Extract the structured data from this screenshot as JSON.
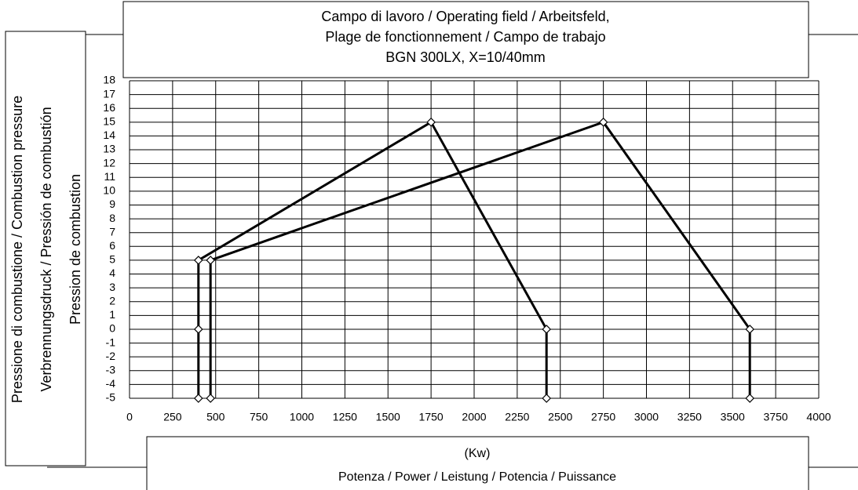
{
  "chart_data": {
    "type": "line",
    "title": [
      "Campo di lavoro / Operating field / Arbeitsfeld,",
      "Plage de fonctionnement / Campo de trabajo",
      "BGN 300LX, X=10/40mm"
    ],
    "ylabel": [
      "Pressione di combustione / Combustion pressure",
      "Verbrennungsdruck / Pressión de combustión",
      "Pression de combustion"
    ],
    "xlabel": [
      "(Kw)",
      "Potenza / Power / Leistung / Potencia / Puissance"
    ],
    "series": [
      {
        "color": "#000000",
        "x": [
          400,
          400,
          400,
          1750,
          2420,
          2420
        ],
        "values": [
          -5,
          0,
          5,
          15,
          0,
          -5
        ]
      },
      {
        "color": "#000000",
        "x": [
          470,
          470,
          2750,
          3600,
          3600
        ],
        "values": [
          -5,
          5,
          15,
          0,
          -5
        ]
      }
    ],
    "xlim": [
      0,
      4000
    ],
    "xticks": [
      0,
      250,
      500,
      750,
      1000,
      1250,
      1500,
      1750,
      2000,
      2250,
      2500,
      2750,
      3000,
      3250,
      3500,
      3750,
      4000
    ],
    "ylim": [
      -5,
      18
    ],
    "yticks": [
      -5,
      -4,
      -3,
      -2,
      -1,
      0,
      1,
      2,
      3,
      4,
      5,
      6,
      7,
      8,
      9,
      10,
      11,
      12,
      13,
      14,
      15,
      16,
      17,
      18
    ],
    "grid": true
  }
}
